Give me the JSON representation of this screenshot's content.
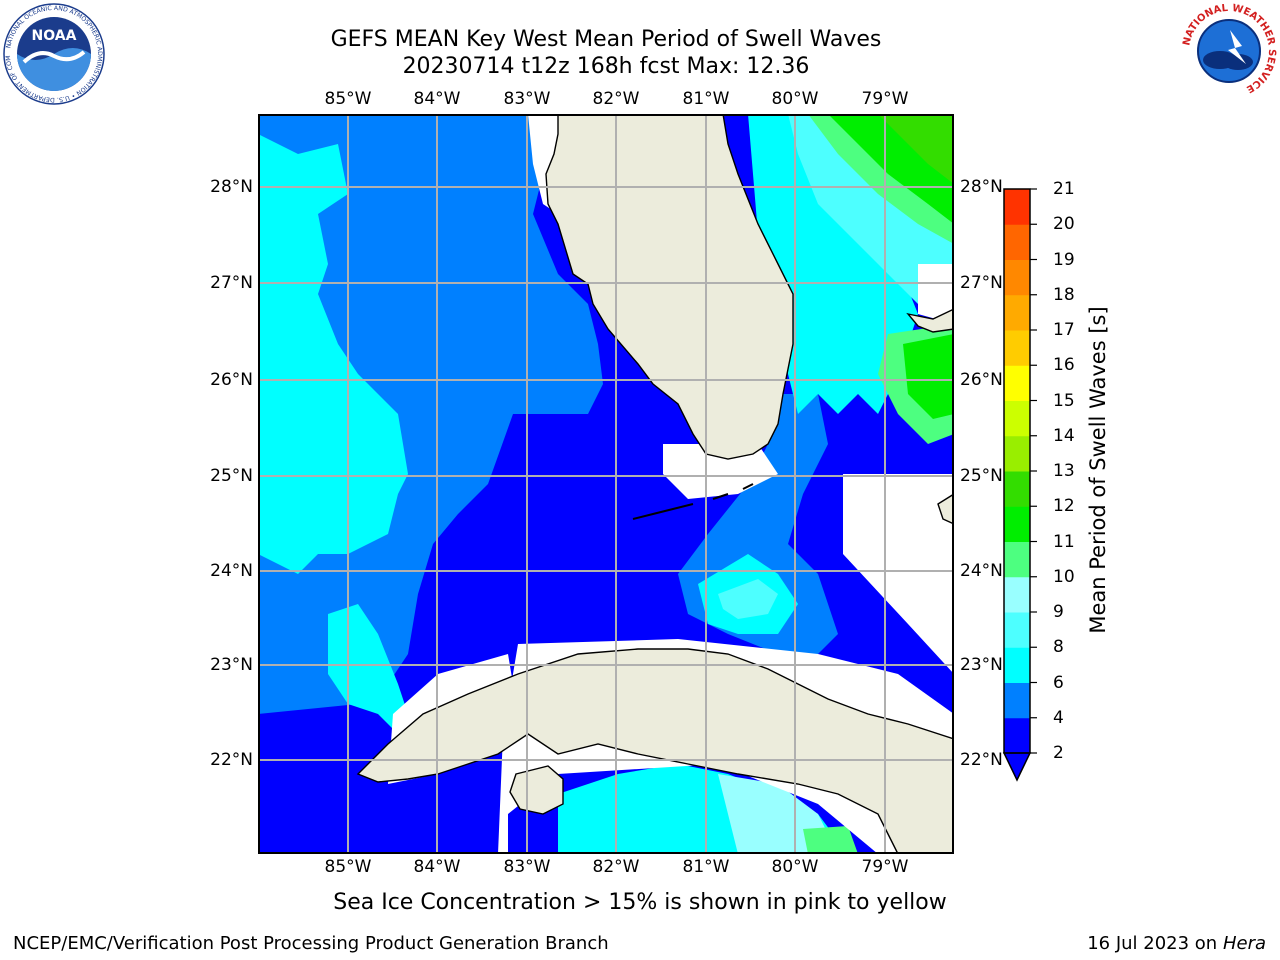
{
  "title_line1": "GEFS MEAN Key West Mean Period of Swell Waves",
  "title_line2": "20230714 t12z 168h fcst   Max: 12.36",
  "lon_labels": [
    "85°W",
    "84°W",
    "83°W",
    "82°W",
    "81°W",
    "80°W",
    "79°W"
  ],
  "lat_labels": [
    "28°N",
    "27°N",
    "26°N",
    "25°N",
    "24°N",
    "23°N",
    "22°N"
  ],
  "colorbar": {
    "title": "Mean Period of Swell Waves [s]",
    "labels": [
      "21",
      "20",
      "19",
      "18",
      "17",
      "16",
      "15",
      "14",
      "13",
      "12",
      "11",
      "10",
      "9",
      "8",
      "6",
      "4",
      "2"
    ],
    "levels": [
      2,
      4,
      6,
      8,
      9,
      10,
      11,
      12,
      13,
      14,
      15,
      16,
      17,
      18,
      19,
      20,
      21
    ],
    "colors": [
      "#0000ff",
      "#0080ff",
      "#00ffff",
      "#4dffff",
      "#99ffff",
      "#4dff80",
      "#00ee00",
      "#33dd00",
      "#99ee00",
      "#ccff00",
      "#ffff00",
      "#ffcc00",
      "#ffaa00",
      "#ff8800",
      "#ff6600",
      "#ff3300",
      "#ff0000"
    ]
  },
  "note": "Sea Ice Concentration > 15% is shown in pink to yellow",
  "credit": "NCEP/EMC/Verification Post Processing Product Generation Branch",
  "date": "16 Jul 2023 on",
  "host": "Hera",
  "logos": {
    "noaa_text": "NOAA",
    "noaa_ring": "NATIONAL OCEANIC AND ATMOSPHERIC ADMINISTRATION • U.S. DEPARTMENT OF COMMERCE",
    "nws_ring": "NATIONAL WEATHER SERVICE"
  },
  "colors": {
    "land": "#ececdc",
    "grid": "#b0b0b0",
    "blue_2_4": "#0000ff",
    "blue_4_6": "#0080ff",
    "cyan_6_8": "#00ffff",
    "cyan_8_9": "#4dffff",
    "cyan_9_10": "#99ffff",
    "green_10_11": "#4dff80",
    "green_11_12": "#00ee00",
    "green_12_13": "#33dd00"
  }
}
